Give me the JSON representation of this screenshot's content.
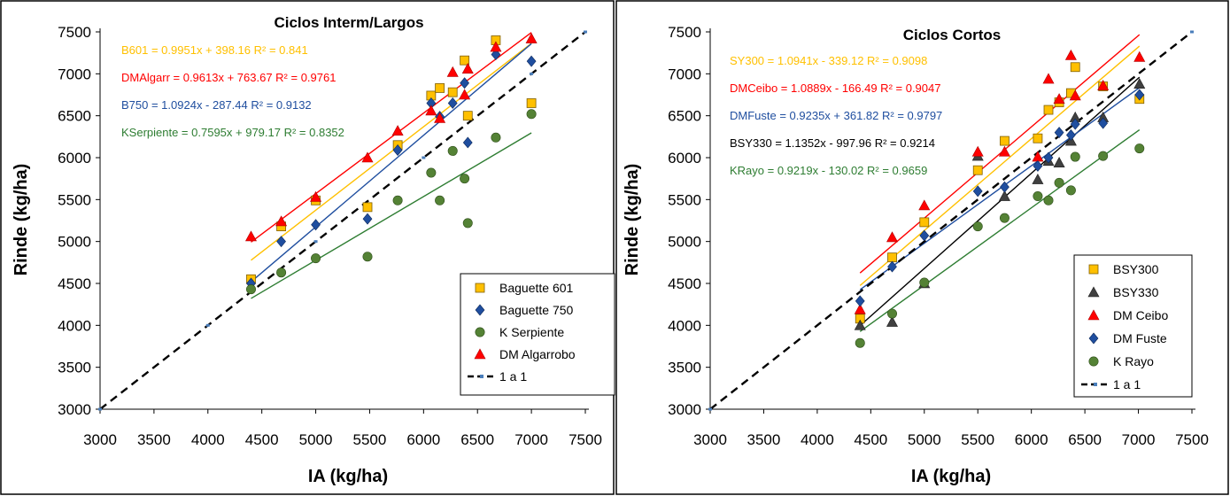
{
  "colors": {
    "orange": "#FFC000",
    "black": "#000000",
    "red": "#FF0000",
    "blue": "#1F4E9F",
    "green": "#2E7D32",
    "greenDot": "#548235",
    "steel": "#2E5C9A"
  },
  "chart_data": [
    {
      "type": "scatter",
      "title": "Ciclos Interm/Largos",
      "xlabel": "IA (kg/ha)",
      "ylabel": "Rinde (kg/ha)",
      "xlim": [
        3000,
        7500
      ],
      "ylim": [
        3000,
        7500
      ],
      "xticks": [
        "3000",
        "3500",
        "4000",
        "4500",
        "5000",
        "5500",
        "6000",
        "6500",
        "7000",
        "7500"
      ],
      "yticks": [
        "3000",
        "3500",
        "4000",
        "4500",
        "5000",
        "5500",
        "6000",
        "6500",
        "7000",
        "7500"
      ],
      "grid": false,
      "legend_position": "bottom-right",
      "equations": [
        {
          "text": "B601 = 0.9951x + 398.16 R² = 0.841",
          "color": "#FFC000"
        },
        {
          "text": "DMAlgarr = 0.9613x + 763.67 R² = 0.9761",
          "color": "#FF0000"
        },
        {
          "text": "B750 = 1.0924x - 287.44 R² = 0.9132",
          "color": "#1F4E9F"
        },
        {
          "text": "KSerpiente = 0.7595x + 979.17 R² = 0.8352",
          "color": "#2E7D32"
        }
      ],
      "series": [
        {
          "name": "Baguette 601",
          "marker": "square",
          "color": "#FFC000",
          "slope": 0.9951,
          "intercept": 398.16,
          "x": [
            4400,
            4680,
            5000,
            5480,
            5760,
            6070,
            6150,
            6270,
            6380,
            6410,
            6670,
            7000
          ],
          "y": [
            4550,
            5180,
            5490,
            5410,
            6150,
            6740,
            6830,
            6780,
            7160,
            6500,
            7400,
            6650
          ]
        },
        {
          "name": "Baguette 750",
          "marker": "diamond",
          "color": "#1F4E9F",
          "slope": 1.0924,
          "intercept": -287.44,
          "x": [
            4400,
            4680,
            5000,
            5480,
            5760,
            6070,
            6150,
            6270,
            6380,
            6410,
            6670,
            7000
          ],
          "y": [
            4500,
            5000,
            5200,
            5270,
            6090,
            6650,
            6490,
            6650,
            6890,
            6180,
            7230,
            7150
          ]
        },
        {
          "name": "K Serpiente",
          "marker": "circle",
          "color": "#548235",
          "slope": 0.7595,
          "intercept": 979.17,
          "x": [
            4400,
            4680,
            5000,
            5480,
            5760,
            6070,
            6150,
            6270,
            6380,
            6410,
            6670,
            7000
          ],
          "y": [
            4430,
            4630,
            4800,
            4820,
            5490,
            5820,
            5490,
            6080,
            5750,
            5220,
            6240,
            6520
          ]
        },
        {
          "name": "DM Algarrobo",
          "marker": "triangle",
          "color": "#FF0000",
          "slope": 0.9613,
          "intercept": 763.67,
          "x": [
            4400,
            4680,
            5000,
            5480,
            5760,
            6070,
            6150,
            6270,
            6380,
            6410,
            6670,
            7000
          ],
          "y": [
            5060,
            5240,
            5530,
            6000,
            6320,
            6560,
            6470,
            7020,
            6750,
            7060,
            7320,
            7420
          ]
        },
        {
          "name": "1 a 1",
          "marker": "dash",
          "color": "#000000",
          "slope": 1,
          "intercept": 0,
          "x": [
            3000,
            4000,
            5000,
            6000,
            7000,
            7500
          ],
          "y": [
            3000,
            4000,
            5000,
            6000,
            7000,
            7500
          ]
        }
      ]
    },
    {
      "type": "scatter",
      "title": "Ciclos Cortos",
      "xlabel": "IA (kg/ha)",
      "ylabel": "Rinde (kg/ha)",
      "xlim": [
        3000,
        7500
      ],
      "ylim": [
        3000,
        7500
      ],
      "xticks": [
        "3000",
        "3500",
        "4000",
        "4500",
        "5000",
        "5500",
        "6000",
        "6500",
        "7000",
        "7500"
      ],
      "yticks": [
        "3000",
        "3500",
        "4000",
        "4500",
        "5000",
        "5500",
        "6000",
        "6500",
        "7000",
        "7500"
      ],
      "grid": false,
      "legend_position": "bottom-right",
      "equations": [
        {
          "text": "SY300 = 1.0941x - 339.12 R² = 0.9098",
          "color": "#FFC000"
        },
        {
          "text": "DMCeibo = 1.0889x - 166.49 R² = 0.9047",
          "color": "#FF0000"
        },
        {
          "text": "DMFuste = 0.9235x + 361.82 R² = 0.9797",
          "color": "#1F4E9F"
        },
        {
          "text": "BSY330 = 1.1352x - 997.96 R² = 0.9214",
          "color": "#000000"
        },
        {
          "text": "KRayo = 0.9219x - 130.02 R² = 0.9659",
          "color": "#2E7D32"
        }
      ],
      "series": [
        {
          "name": "BSY300",
          "marker": "square",
          "color": "#FFC000",
          "slope": 1.0941,
          "intercept": -339.12,
          "x": [
            4400,
            4700,
            5000,
            5500,
            5750,
            6060,
            6160,
            6260,
            6370,
            6410,
            6670,
            7010
          ],
          "y": [
            4080,
            4810,
            5230,
            5850,
            6200,
            6230,
            6570,
            6660,
            6770,
            7080,
            6850,
            6700
          ]
        },
        {
          "name": "BSY330",
          "marker": "triangle",
          "color": "#404040",
          "slope": 1.1352,
          "intercept": -997.96,
          "x": [
            4400,
            4700,
            5000,
            5500,
            5750,
            6060,
            6160,
            6260,
            6370,
            6410,
            6670,
            7010
          ],
          "y": [
            4000,
            4040,
            4500,
            6020,
            5540,
            5740,
            5960,
            5940,
            6200,
            6480,
            6480,
            6880
          ]
        },
        {
          "name": "DM Ceibo",
          "marker": "triangle",
          "color": "#FF0000",
          "slope": 1.0889,
          "intercept": -166.49,
          "x": [
            4400,
            4700,
            5000,
            5500,
            5750,
            6060,
            6160,
            6260,
            6370,
            6410,
            6670,
            7010
          ],
          "y": [
            4190,
            5050,
            5430,
            6070,
            6070,
            6010,
            6940,
            6700,
            7220,
            6740,
            6860,
            7200
          ]
        },
        {
          "name": "DM Fuste",
          "marker": "diamond",
          "color": "#1F4E9F",
          "slope": 0.9235,
          "intercept": 361.82,
          "x": [
            4400,
            4700,
            5000,
            5500,
            5750,
            6060,
            6160,
            6260,
            6370,
            6410,
            6670,
            7010
          ],
          "y": [
            4290,
            4700,
            5070,
            5600,
            5650,
            5900,
            6000,
            6300,
            6270,
            6400,
            6410,
            6750
          ]
        },
        {
          "name": "K Rayo",
          "marker": "circle",
          "color": "#548235",
          "slope": 0.9219,
          "intercept": -130.02,
          "x": [
            4400,
            4700,
            5000,
            5500,
            5750,
            6060,
            6160,
            6260,
            6370,
            6410,
            6670,
            7010
          ],
          "y": [
            3790,
            4140,
            4510,
            5180,
            5280,
            5540,
            5490,
            5700,
            5610,
            6010,
            6020,
            6110
          ]
        },
        {
          "name": "1 a 1",
          "marker": "dash",
          "color": "#000000",
          "slope": 1,
          "intercept": 0,
          "x": [
            3000,
            7500
          ],
          "y": [
            3000,
            7500
          ]
        }
      ]
    }
  ]
}
